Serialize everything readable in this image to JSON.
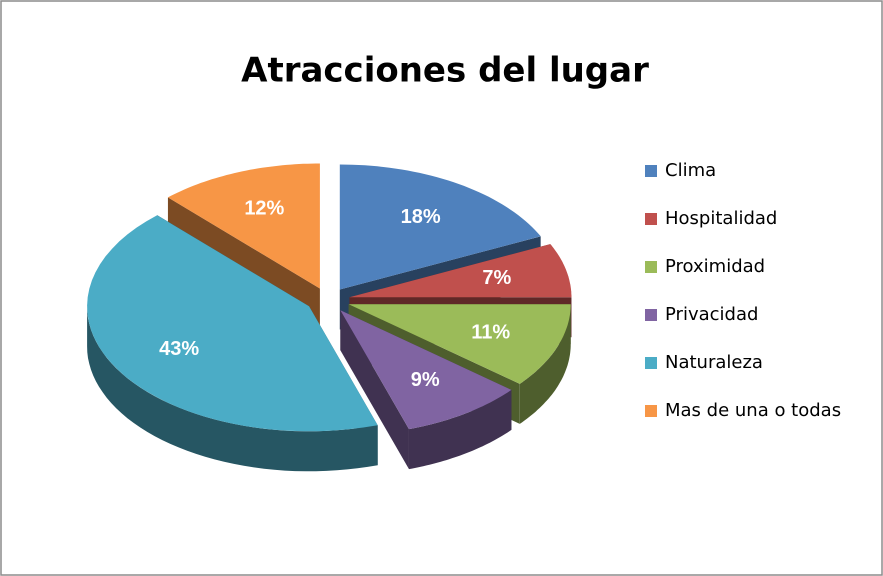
{
  "chart_data": {
    "type": "pie",
    "title": "Atracciones del lugar",
    "categories": [
      "Clima",
      "Hospitalidad",
      "Proximidad",
      "Privacidad",
      "Naturaleza",
      "Mas de una o todas"
    ],
    "values": [
      18,
      7,
      11,
      9,
      43,
      12
    ],
    "value_labels": [
      "18%",
      "7%",
      "11%",
      "9%",
      "43%",
      "12%"
    ],
    "colors": [
      "#4f81bd",
      "#c0504d",
      "#9bbb59",
      "#8064a2",
      "#4bacc6",
      "#f79646"
    ],
    "legend": "right"
  }
}
